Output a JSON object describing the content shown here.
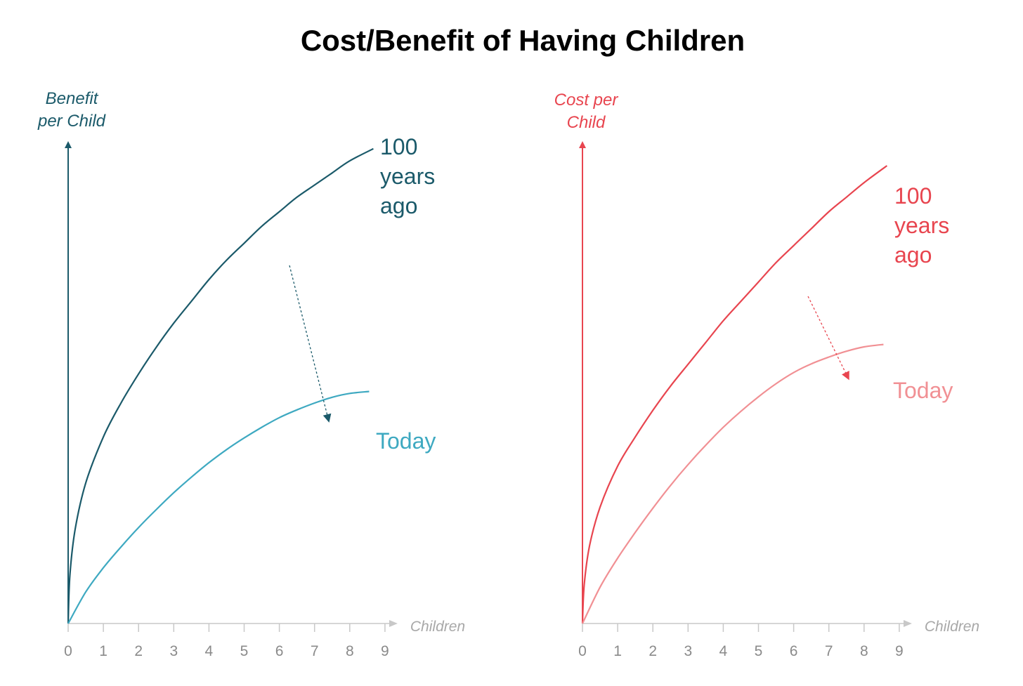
{
  "title": "Cost/Benefit of Having Children",
  "colors": {
    "benefit_axis": "#1b5a6a",
    "benefit_past": "#1b5a6a",
    "benefit_today": "#3ea9c1",
    "cost_axis": "#e8454f",
    "cost_past": "#e8454f",
    "cost_today": "#f19094",
    "x_axis": "#c8c8c8",
    "tick_label": "#8a8a8a"
  },
  "chart_data": [
    {
      "type": "line",
      "title": "",
      "ylabel": [
        "Benefit",
        "per Child"
      ],
      "xlabel": "Children",
      "x_ticks": [
        "0",
        "1",
        "2",
        "3",
        "4",
        "5",
        "6",
        "7",
        "8",
        "9"
      ],
      "xlim": [
        0,
        9
      ],
      "ylim": [
        0,
        100
      ],
      "series": [
        {
          "name": "100 years ago",
          "label_lines": [
            "100",
            "years",
            "ago"
          ],
          "x": [
            0,
            0.05,
            0.2,
            0.5,
            1,
            1.5,
            2,
            2.5,
            3,
            3.5,
            4,
            4.5,
            5,
            5.5,
            6,
            6.5,
            7,
            7.5,
            8,
            8.67
          ],
          "y": [
            0,
            10,
            19.5,
            29,
            38.5,
            45.5,
            51.5,
            57,
            62,
            66.5,
            71,
            75,
            78.5,
            82,
            85,
            88,
            90.5,
            93,
            95.5,
            98
          ]
        },
        {
          "name": "Today",
          "label_lines": [
            "Today"
          ],
          "x": [
            0,
            0.5,
            1,
            1.5,
            2,
            2.5,
            3,
            3.5,
            4,
            4.5,
            5,
            5.5,
            6,
            6.5,
            7,
            7.5,
            8,
            8.55
          ],
          "y": [
            0,
            6.5,
            11.5,
            15.8,
            19.8,
            23.5,
            27,
            30.2,
            33.2,
            35.9,
            38.3,
            40.5,
            42.5,
            44.1,
            45.5,
            46.7,
            47.5,
            47.9
          ]
        }
      ],
      "annotation": "shift downward from 100 years ago to today"
    },
    {
      "type": "line",
      "title": "",
      "ylabel": [
        "Cost per",
        "Child"
      ],
      "xlabel": "Children",
      "x_ticks": [
        "0",
        "1",
        "2",
        "3",
        "4",
        "5",
        "6",
        "7",
        "8",
        "9"
      ],
      "xlim": [
        0,
        9
      ],
      "ylim": [
        0,
        100
      ],
      "series": [
        {
          "name": "100 years ago",
          "label_lines": [
            "100",
            "years",
            "ago"
          ],
          "x": [
            0,
            0.05,
            0.2,
            0.5,
            1,
            1.5,
            2,
            2.5,
            3,
            3.5,
            4,
            4.5,
            5,
            5.5,
            6,
            6.5,
            7,
            7.5,
            8,
            8.65
          ],
          "y": [
            0,
            8,
            16,
            24,
            32.5,
            38.5,
            44,
            49,
            53.5,
            58,
            62.5,
            66.5,
            70.5,
            74.5,
            78,
            81.5,
            85,
            88,
            91,
            94.5
          ]
        },
        {
          "name": "Today",
          "label_lines": [
            "Today"
          ],
          "x": [
            0,
            0.5,
            1,
            1.5,
            2,
            2.5,
            3,
            3.5,
            4,
            4.5,
            5,
            5.5,
            6,
            6.5,
            7,
            7.5,
            8,
            8.55
          ],
          "y": [
            0,
            7.5,
            13.5,
            18.8,
            23.8,
            28.5,
            32.8,
            36.8,
            40.5,
            43.8,
            46.8,
            49.5,
            51.8,
            53.6,
            55,
            56.2,
            57.1,
            57.6
          ]
        }
      ],
      "annotation": "shift downward from 100 years ago to today"
    }
  ]
}
